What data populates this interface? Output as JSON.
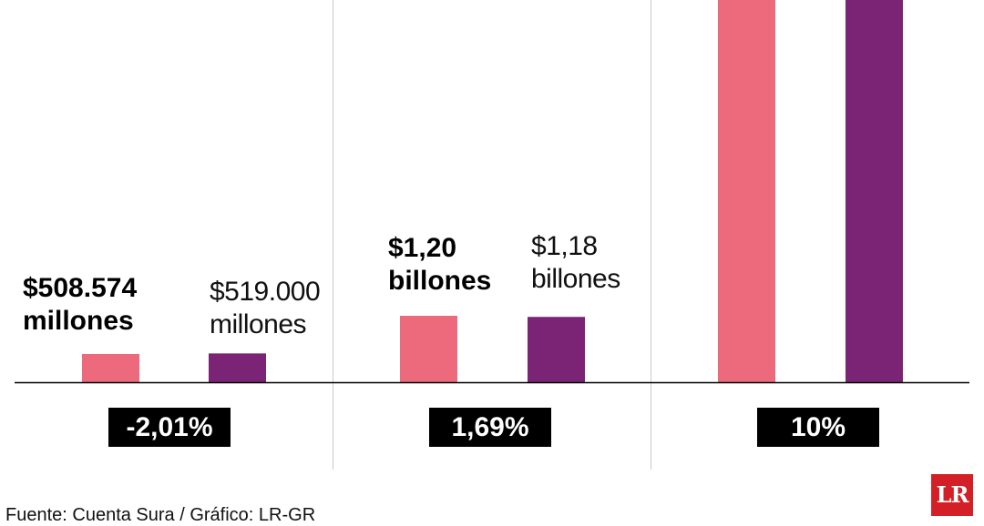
{
  "chart_data": {
    "type": "bar",
    "categories": [
      "-2,01%",
      "1,69%",
      "10%"
    ],
    "series": [
      {
        "values": [
          508574,
          1200000,
          null
        ],
        "color": "#ec6a7b"
      },
      {
        "values": [
          519000,
          1180000,
          null
        ],
        "color": "#7b2476"
      }
    ],
    "bar_labels": [
      {
        "first": [
          "$508.574",
          "millones"
        ],
        "second": [
          "$519.000",
          "millones"
        ]
      },
      {
        "first": [
          "$1,20",
          "billones"
        ],
        "second": [
          "$1,18",
          "billones"
        ]
      },
      {
        "first": [],
        "second": []
      }
    ],
    "changes": [
      "-2,01%",
      "1,69%",
      "10%"
    ],
    "note": "Third group bars extend beyond the visible top edge (values not shown)"
  },
  "source": "Fuente: Cuenta Sura / Gráfico: LR-GR",
  "logo": "LR"
}
